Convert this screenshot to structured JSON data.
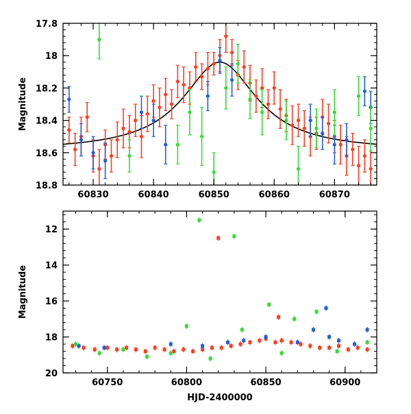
{
  "chart_data": [
    {
      "type": "scatter",
      "panel": "top",
      "xlabel": "",
      "ylabel": "Magnitude",
      "xlim": [
        60825,
        60877
      ],
      "ylim": [
        18.8,
        17.8
      ],
      "y_inverted": true,
      "x_ticks": [
        60830,
        60840,
        60850,
        60860,
        60870
      ],
      "x_tick_labels": [
        "60830",
        "60840",
        "60850",
        "60860",
        "60870"
      ],
      "y_ticks": [
        17.8,
        18,
        18.2,
        18.4,
        18.6,
        18.8
      ],
      "y_tick_labels": [
        "17.8",
        "18",
        "18.2",
        "18.4",
        "18.6",
        "18.8"
      ],
      "grid": false,
      "legend": "none",
      "series": [
        {
          "color": "#ff3b1f",
          "values": [
            [
              60826,
              18.46,
              0.08
            ],
            [
              60827,
              18.58,
              0.1
            ],
            [
              60828,
              18.5,
              0.12
            ],
            [
              60829,
              18.38,
              0.09
            ],
            [
              60830,
              18.62,
              0.1
            ],
            [
              60831,
              18.7,
              0.12
            ],
            [
              60832,
              18.55,
              0.09
            ],
            [
              60833,
              18.62,
              0.1
            ],
            [
              60834,
              18.52,
              0.11
            ],
            [
              60835,
              18.45,
              0.12
            ],
            [
              60836,
              18.47,
              0.1
            ],
            [
              60837,
              18.4,
              0.1
            ],
            [
              60838,
              18.5,
              0.13
            ],
            [
              60839,
              18.36,
              0.11
            ],
            [
              60840,
              18.28,
              0.1
            ],
            [
              60841,
              18.32,
              0.12
            ],
            [
              60842,
              18.24,
              0.1
            ],
            [
              60843,
              18.3,
              0.09
            ],
            [
              60844,
              18.16,
              0.1
            ],
            [
              60845,
              18.18,
              0.11
            ],
            [
              60846,
              18.2,
              0.1
            ],
            [
              60847,
              18.07,
              0.09
            ],
            [
              60848,
              18.13,
              0.08
            ],
            [
              60849,
              18.08,
              0.1
            ],
            [
              60850,
              18.05,
              0.07
            ],
            [
              60851,
              18.0,
              0.1
            ],
            [
              60852,
              17.88,
              0.1
            ],
            [
              60853,
              17.98,
              0.08
            ],
            [
              60854,
              18.12,
              0.09
            ],
            [
              60855,
              18.07,
              0.1
            ],
            [
              60856,
              18.17,
              0.11
            ],
            [
              60857,
              18.25,
              0.1
            ],
            [
              60858,
              18.2,
              0.12
            ],
            [
              60859,
              18.3,
              0.09
            ],
            [
              60860,
              18.2,
              0.1
            ],
            [
              60861,
              18.33,
              0.12
            ],
            [
              60862,
              18.37,
              0.1
            ],
            [
              60863,
              18.43,
              0.12
            ],
            [
              60864,
              18.4,
              0.1
            ],
            [
              60865,
              18.45,
              0.11
            ],
            [
              60866,
              18.5,
              0.12
            ],
            [
              60867,
              18.48,
              0.1
            ],
            [
              60868,
              18.38,
              0.11
            ],
            [
              60869,
              18.42,
              0.12
            ],
            [
              60870,
              18.5,
              0.1
            ],
            [
              60871,
              18.55,
              0.12
            ],
            [
              60872,
              18.62,
              0.12
            ],
            [
              60873,
              18.58,
              0.1
            ],
            [
              60874,
              18.68,
              0.12
            ],
            [
              60875,
              18.62,
              0.1
            ],
            [
              60876,
              18.7,
              0.11
            ]
          ]
        },
        {
          "color": "#1f5fe0",
          "values": [
            [
              60826,
              18.27,
              0.08
            ],
            [
              60828,
              18.52,
              0.1
            ],
            [
              60830,
              18.6,
              0.1
            ],
            [
              60832,
              18.65,
              0.11
            ],
            [
              60838,
              18.35,
              0.1
            ],
            [
              60840,
              18.4,
              0.1
            ],
            [
              60842,
              18.55,
              0.12
            ],
            [
              60849,
              18.25,
              0.09
            ],
            [
              60851,
              18.03,
              0.08
            ],
            [
              60853,
              18.15,
              0.1
            ],
            [
              60866,
              18.4,
              0.1
            ],
            [
              60868,
              18.48,
              0.1
            ],
            [
              60870,
              18.55,
              0.12
            ],
            [
              60872,
              18.52,
              0.1
            ],
            [
              60875,
              18.22,
              0.09
            ],
            [
              60876,
              18.32,
              0.1
            ]
          ]
        },
        {
          "color": "#33dd33",
          "values": [
            [
              60831,
              17.9,
              0.12
            ],
            [
              60836,
              18.62,
              0.1
            ],
            [
              60844,
              18.55,
              0.12
            ],
            [
              60846,
              18.35,
              0.14
            ],
            [
              60848,
              18.5,
              0.18
            ],
            [
              60850,
              18.72,
              0.12
            ],
            [
              60852,
              18.2,
              0.13
            ],
            [
              60854,
              18.05,
              0.12
            ],
            [
              60856,
              18.27,
              0.12
            ],
            [
              60858,
              18.35,
              0.14
            ],
            [
              60862,
              18.4,
              0.12
            ],
            [
              60864,
              18.7,
              0.14
            ],
            [
              60867,
              18.45,
              0.12
            ],
            [
              60870,
              18.35,
              0.14
            ],
            [
              60874,
              18.25,
              0.12
            ],
            [
              60876,
              18.45,
              0.14
            ]
          ]
        }
      ],
      "model_curve": {
        "color": "#000000",
        "peak_x": 60851,
        "peak_mag": 18.04,
        "baseline_mag": 18.59,
        "width_days": 7.5
      }
    },
    {
      "type": "scatter",
      "panel": "bottom",
      "xlabel": "HJD-2400000",
      "ylabel": "Magnitude",
      "xlim": [
        60722,
        60920
      ],
      "ylim": [
        20,
        11
      ],
      "y_inverted": true,
      "x_ticks": [
        60750,
        60800,
        60850,
        60900
      ],
      "x_tick_labels": [
        "60750",
        "60800",
        "60850",
        "60900"
      ],
      "y_ticks": [
        12,
        14,
        16,
        18,
        20
      ],
      "y_tick_labels": [
        "12",
        "14",
        "16",
        "18",
        "20"
      ],
      "grid": false,
      "legend": "none",
      "series": [
        {
          "color": "#ff3b1f",
          "values": [
            [
              60728,
              18.5
            ],
            [
              60735,
              18.6
            ],
            [
              60742,
              18.7
            ],
            [
              60750,
              18.6
            ],
            [
              60756,
              18.7
            ],
            [
              60762,
              18.6
            ],
            [
              60768,
              18.7
            ],
            [
              60774,
              18.8
            ],
            [
              60780,
              18.6
            ],
            [
              60786,
              18.7
            ],
            [
              60792,
              18.8
            ],
            [
              60798,
              18.7
            ],
            [
              60804,
              18.8
            ],
            [
              60810,
              18.7
            ],
            [
              60816,
              18.6
            ],
            [
              60820,
              12.5
            ],
            [
              60822,
              18.6
            ],
            [
              60828,
              18.5
            ],
            [
              60834,
              18.4
            ],
            [
              60840,
              18.3
            ],
            [
              60846,
              18.2
            ],
            [
              60850,
              18.1
            ],
            [
              60856,
              18.3
            ],
            [
              60860,
              18.2
            ],
            [
              60866,
              18.3
            ],
            [
              60872,
              18.4
            ],
            [
              60878,
              18.5
            ],
            [
              60884,
              18.6
            ],
            [
              60890,
              18.6
            ],
            [
              60896,
              18.5
            ],
            [
              60902,
              18.7
            ],
            [
              60908,
              18.6
            ],
            [
              60914,
              18.7
            ],
            [
              60858,
              16.9
            ]
          ]
        },
        {
          "color": "#1f5fe0",
          "values": [
            [
              60732,
              18.5
            ],
            [
              60748,
              18.6
            ],
            [
              60790,
              18.4
            ],
            [
              60810,
              18.5
            ],
            [
              60826,
              18.3
            ],
            [
              60836,
              18.2
            ],
            [
              60850,
              18.0
            ],
            [
              60870,
              18.3
            ],
            [
              60880,
              17.6
            ],
            [
              60888,
              16.4
            ],
            [
              60896,
              18.2
            ],
            [
              60906,
              18.4
            ],
            [
              60914,
              17.6
            ],
            [
              60890,
              18.0
            ]
          ]
        },
        {
          "color": "#33dd33",
          "values": [
            [
              60730,
              18.4
            ],
            [
              60745,
              18.9
            ],
            [
              60760,
              18.7
            ],
            [
              60775,
              19.1
            ],
            [
              60790,
              18.9
            ],
            [
              60800,
              17.4
            ],
            [
              60808,
              11.5
            ],
            [
              60815,
              19.2
            ],
            [
              60830,
              12.4
            ],
            [
              60835,
              17.6
            ],
            [
              60852,
              16.2
            ],
            [
              60860,
              18.9
            ],
            [
              60868,
              17.0
            ],
            [
              60882,
              16.6
            ],
            [
              60895,
              18.8
            ],
            [
              60914,
              18.3
            ]
          ]
        }
      ]
    }
  ]
}
